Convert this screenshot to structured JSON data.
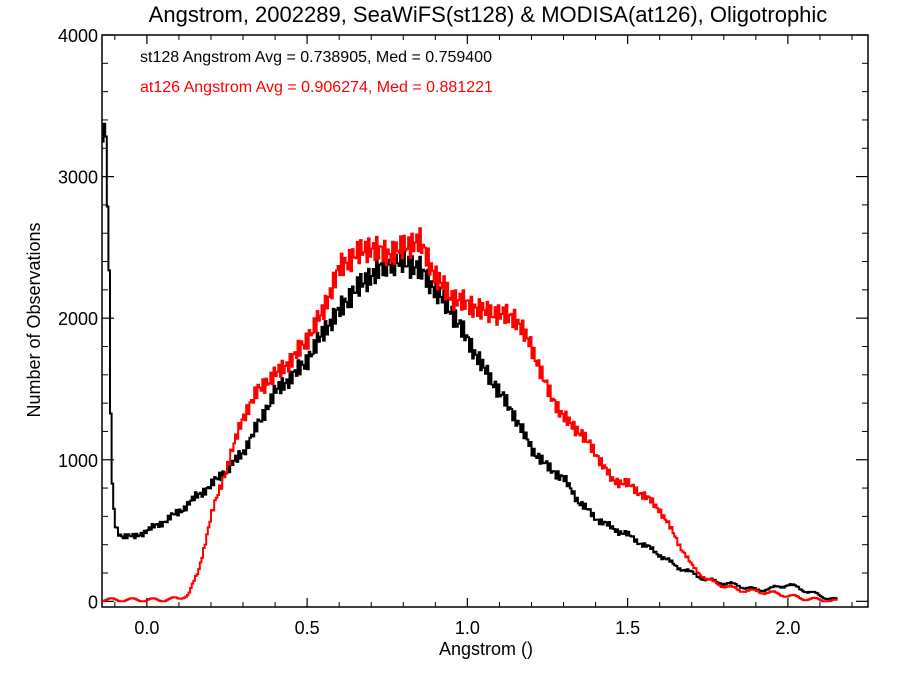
{
  "chart_data": {
    "type": "line",
    "title": "Angstrom, 2002289, SeaWiFS(st128) & MODISA(at126), Oligotrophic",
    "xlabel": "Angstrom ()",
    "ylabel": "Number of Observations",
    "xlim": [
      -0.14,
      2.25
    ],
    "ylim": [
      -40,
      4000
    ],
    "xticks": [
      0.0,
      0.5,
      1.0,
      1.5,
      2.0
    ],
    "xtick_labels": [
      "0.0",
      "0.5",
      "1.0",
      "1.5",
      "2.0"
    ],
    "yticks": [
      0,
      1000,
      2000,
      3000,
      4000
    ],
    "ytick_labels": [
      "0",
      "1000",
      "2000",
      "3000",
      "4000"
    ],
    "grid": false,
    "legend_position": "top-left",
    "step": "histogram",
    "series": [
      {
        "name": "st128",
        "legend": "st128 Angstrom Avg = 0.738905, Med = 0.759400",
        "color": "#000000",
        "x": [
          -0.14,
          -0.13,
          -0.12,
          -0.11,
          -0.1,
          -0.09,
          -0.08,
          -0.06,
          -0.04,
          -0.02,
          0.0,
          0.02,
          0.05,
          0.1,
          0.15,
          0.2,
          0.25,
          0.3,
          0.35,
          0.4,
          0.45,
          0.5,
          0.55,
          0.6,
          0.65,
          0.7,
          0.75,
          0.8,
          0.85,
          0.9,
          0.95,
          1.0,
          1.05,
          1.1,
          1.15,
          1.2,
          1.25,
          1.3,
          1.35,
          1.4,
          1.45,
          1.5,
          1.55,
          1.6,
          1.65,
          1.7,
          1.75,
          1.8,
          1.85,
          1.9,
          1.95,
          2.0,
          2.05,
          2.1,
          2.15
        ],
        "y": [
          3300,
          3400,
          2700,
          900,
          550,
          490,
          470,
          460,
          450,
          480,
          500,
          520,
          560,
          630,
          730,
          820,
          930,
          1050,
          1260,
          1480,
          1580,
          1700,
          1900,
          2050,
          2200,
          2300,
          2380,
          2400,
          2350,
          2200,
          2050,
          1850,
          1650,
          1480,
          1300,
          1080,
          950,
          870,
          700,
          590,
          520,
          470,
          400,
          330,
          250,
          200,
          150,
          130,
          110,
          80,
          90,
          120,
          80,
          40,
          10
        ]
      },
      {
        "name": "at126",
        "legend": "at126 Angstrom Avg = 0.906274, Med = 0.881221",
        "color": "#ff0000",
        "x": [
          -0.14,
          -0.1,
          -0.05,
          0.0,
          0.05,
          0.1,
          0.13,
          0.16,
          0.2,
          0.25,
          0.3,
          0.35,
          0.4,
          0.45,
          0.5,
          0.55,
          0.6,
          0.65,
          0.7,
          0.75,
          0.8,
          0.85,
          0.9,
          0.95,
          1.0,
          1.05,
          1.1,
          1.15,
          1.2,
          1.25,
          1.3,
          1.35,
          1.4,
          1.45,
          1.5,
          1.55,
          1.6,
          1.65,
          1.7,
          1.75,
          1.8,
          1.85,
          1.9,
          1.95,
          2.0,
          2.05,
          2.1,
          2.15
        ],
        "y": [
          10,
          10,
          10,
          10,
          10,
          20,
          50,
          200,
          600,
          950,
          1300,
          1500,
          1600,
          1700,
          1850,
          2050,
          2350,
          2450,
          2500,
          2450,
          2500,
          2550,
          2300,
          2150,
          2100,
          2050,
          2030,
          2000,
          1800,
          1500,
          1300,
          1200,
          1050,
          860,
          830,
          750,
          650,
          450,
          250,
          150,
          110,
          80,
          70,
          60,
          40,
          20,
          10,
          0
        ]
      }
    ]
  }
}
